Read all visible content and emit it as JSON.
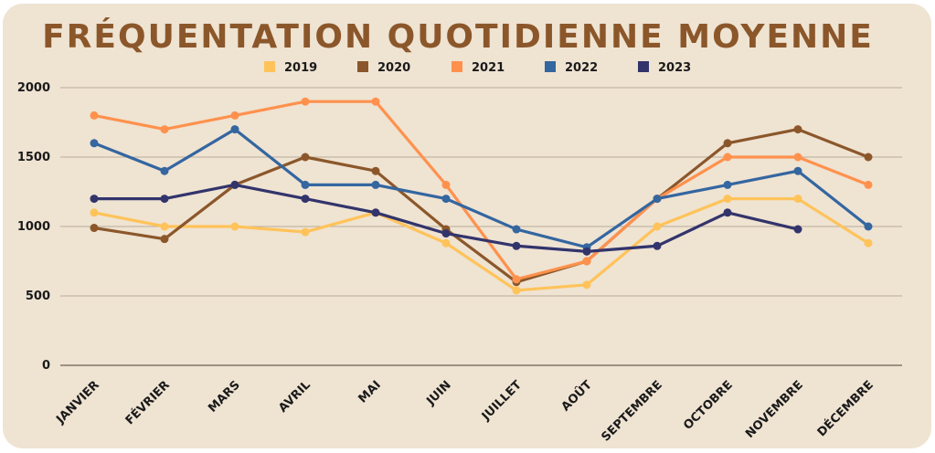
{
  "chart_data": {
    "type": "line",
    "title": "FRÉQUENTATION QUOTIDIENNE MOYENNE",
    "categories": [
      "JANVIER",
      "FÉVRIER",
      "MARS",
      "AVRIL",
      "MAI",
      "JUIN",
      "JUILLET",
      "AOÛT",
      "SEPTEMBRE",
      "OCTOBRE",
      "NOVEMBRE",
      "DÉCEMBRE"
    ],
    "ylim": [
      0,
      2000
    ],
    "yticks": [
      0,
      500,
      1000,
      1500,
      2000
    ],
    "grid": true,
    "legend_position": "top",
    "series": [
      {
        "name": "2019",
        "color": "#ffc35a",
        "values": [
          1100,
          1000,
          1000,
          960,
          1100,
          880,
          540,
          580,
          1000,
          1200,
          1200,
          880
        ]
      },
      {
        "name": "2020",
        "color": "#8b572a",
        "values": [
          990,
          910,
          1300,
          1500,
          1400,
          980,
          600,
          750,
          1200,
          1600,
          1700,
          1500
        ]
      },
      {
        "name": "2021",
        "color": "#ff914d",
        "values": [
          1800,
          1700,
          1800,
          1900,
          1900,
          1300,
          620,
          750,
          1200,
          1500,
          1500,
          1300
        ]
      },
      {
        "name": "2022",
        "color": "#3466a0",
        "values": [
          1600,
          1400,
          1700,
          1300,
          1300,
          1200,
          980,
          850,
          1200,
          1300,
          1400,
          1000
        ]
      },
      {
        "name": "2023",
        "color": "#32346b",
        "values": [
          1200,
          1200,
          1300,
          1200,
          1100,
          950,
          860,
          820,
          860,
          1100,
          980,
          null
        ]
      }
    ]
  }
}
